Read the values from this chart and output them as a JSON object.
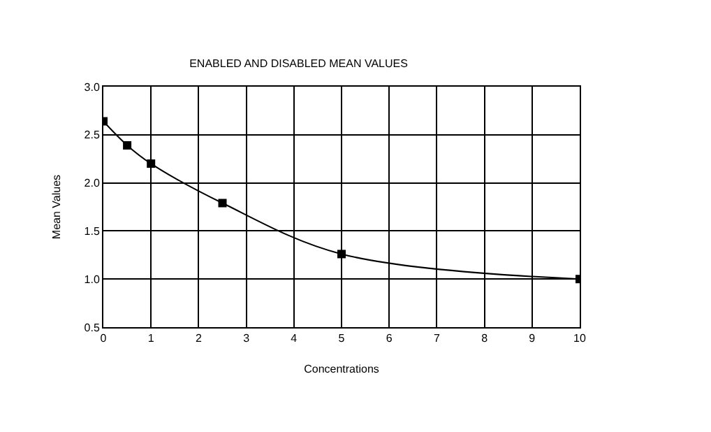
{
  "chart_data": {
    "type": "line",
    "title": "ENABLED AND DISABLED MEAN VALUES",
    "xlabel": "Concentrations",
    "ylabel": "Mean Values",
    "x": [
      0,
      0.5,
      1,
      2.5,
      5,
      10
    ],
    "series": [
      {
        "color": "#000000",
        "values": [
          2.64,
          2.39,
          2.2,
          1.79,
          1.26,
          1.0
        ]
      }
    ],
    "xlim": [
      0,
      10
    ],
    "xticks": [
      0,
      1,
      2,
      3,
      4,
      5,
      6,
      7,
      8,
      9,
      10
    ],
    "ylim": [
      0.5,
      3.0
    ],
    "yticks": [
      0.5,
      {
        "value": 1,
        "label": "1.0"
      },
      1.5,
      {
        "value": 2,
        "label": "2.0"
      },
      2.5,
      {
        "value": 3,
        "label": "3.0"
      }
    ],
    "grid": true,
    "marker": "square",
    "line_style": "solid"
  }
}
